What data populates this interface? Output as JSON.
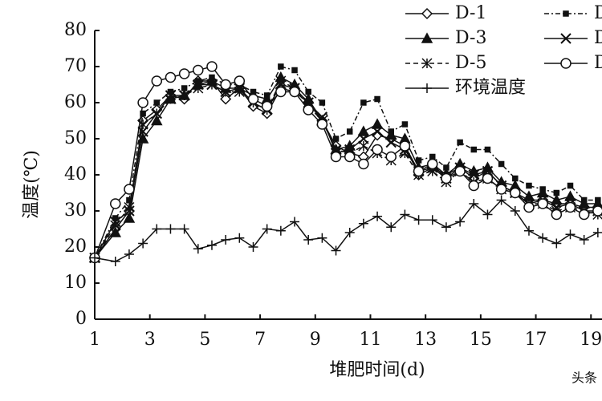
{
  "chart_data": {
    "type": "line",
    "xlabel": "堆肥时间(d)",
    "ylabel": "温度(℃)",
    "x": [
      1,
      1.75,
      2.25,
      2.75,
      3.25,
      3.75,
      4.25,
      4.75,
      5.25,
      5.75,
      6.25,
      6.75,
      7.25,
      7.75,
      8.25,
      8.75,
      9.25,
      9.75,
      10.25,
      10.75,
      11.25,
      11.75,
      12.25,
      12.75,
      13.25,
      13.75,
      14.25,
      14.75,
      15.25,
      15.75,
      16.25,
      16.75,
      17.25,
      17.75,
      18.25,
      18.75,
      19.25
    ],
    "xlim": [
      1,
      19.4
    ],
    "xticks": [
      1,
      3,
      5,
      7,
      9,
      11,
      13,
      15,
      17,
      19
    ],
    "ylim": [
      0,
      80
    ],
    "yticks": [
      0,
      10,
      20,
      30,
      40,
      50,
      60,
      70,
      80
    ],
    "series": [
      {
        "name": "D-1",
        "color": "#111111",
        "marker": "diamond",
        "dash": "none",
        "values": [
          17,
          25,
          30,
          55,
          58,
          62,
          61,
          66,
          66,
          61,
          64,
          59,
          57,
          64,
          63,
          60,
          55,
          48,
          46,
          45,
          51,
          50,
          48,
          40,
          42,
          40,
          42,
          39,
          41,
          37,
          35,
          33,
          33,
          32,
          32,
          31,
          31
        ]
      },
      {
        "name": "D",
        "color": "#111111",
        "marker": "square",
        "dash": "6 3 2 3",
        "values": [
          17,
          28,
          33,
          57,
          60,
          63,
          64,
          66,
          67,
          65,
          65,
          63,
          62,
          70,
          69,
          63,
          60,
          50,
          52,
          60,
          61,
          52,
          54,
          44,
          45,
          42,
          49,
          47,
          47,
          43,
          39,
          37,
          36,
          35,
          37,
          33,
          33
        ]
      },
      {
        "name": "D-3",
        "color": "#111111",
        "marker": "triangle",
        "dash": "none",
        "values": [
          17,
          24,
          28,
          50,
          55,
          61,
          62,
          65,
          66,
          64,
          64,
          62,
          61,
          67,
          65,
          61,
          55,
          47,
          48,
          52,
          54,
          51,
          50,
          42,
          43,
          40,
          43,
          41,
          42,
          38,
          37,
          34,
          35,
          33,
          34,
          32,
          32
        ]
      },
      {
        "name": "D",
        "color": "#111111",
        "marker": "x",
        "dash": "none",
        "values": [
          17,
          27,
          30,
          52,
          57,
          62,
          62,
          65,
          65,
          63,
          64,
          60,
          58,
          65,
          64,
          60,
          56,
          46,
          47,
          50,
          52,
          49,
          47,
          41,
          42,
          39,
          42,
          40,
          41,
          37,
          35,
          32,
          33,
          31,
          32,
          30,
          30
        ]
      },
      {
        "name": "D-5",
        "color": "#111111",
        "marker": "star",
        "dash": "6 4",
        "values": [
          17,
          26,
          31,
          54,
          57,
          61,
          62,
          64,
          65,
          63,
          63,
          60,
          58,
          66,
          64,
          59,
          55,
          47,
          46,
          48,
          46,
          44,
          46,
          40,
          41,
          38,
          41,
          38,
          39,
          36,
          35,
          32,
          32,
          30,
          31,
          30,
          29
        ]
      },
      {
        "name": "D",
        "color": "#111111",
        "marker": "circle",
        "dash": "none",
        "values": [
          17,
          32,
          36,
          60,
          66,
          67,
          68,
          69,
          70,
          65,
          66,
          61,
          59,
          63,
          63,
          58,
          54,
          45,
          45,
          43,
          47,
          45,
          48,
          41,
          43,
          39,
          41,
          37,
          39,
          36,
          35,
          31,
          32,
          29,
          31,
          29,
          30
        ]
      },
      {
        "name": "环境温度",
        "color": "#111111",
        "marker": "plus",
        "dash": "none",
        "values": [
          17,
          16,
          18,
          21,
          25,
          25,
          25,
          19.5,
          20.5,
          22,
          22.5,
          20,
          25,
          24.5,
          27,
          22,
          22.5,
          19,
          24,
          26.5,
          28.5,
          25.5,
          29,
          27.5,
          27.5,
          25.5,
          27,
          32,
          29,
          33,
          30,
          24.5,
          22.5,
          21,
          23.5,
          22,
          24
        ]
      }
    ],
    "watermark": "头条"
  }
}
